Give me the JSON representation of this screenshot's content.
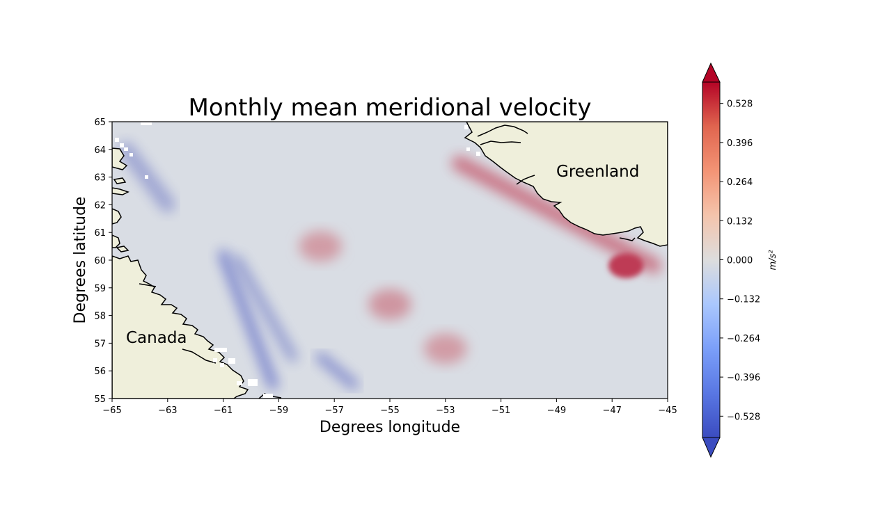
{
  "figure": {
    "title": "Monthly mean meridional velocity",
    "xlabel": "Degrees longitude",
    "ylabel": "Degrees latitude"
  },
  "chart_data": {
    "type": "heatmap",
    "title": "Monthly mean meridional velocity",
    "xlabel": "Degrees longitude",
    "ylabel": "Degrees latitude",
    "xlim": [
      -65,
      -45
    ],
    "ylim": [
      55,
      65
    ],
    "x_ticks": [
      -65,
      -63,
      -61,
      -59,
      -57,
      -55,
      -53,
      -51,
      -49,
      -47,
      -45
    ],
    "x_tick_labels": [
      "−65",
      "−63",
      "−61",
      "−59",
      "−57",
      "−55",
      "−53",
      "−51",
      "−49",
      "−47",
      "−45"
    ],
    "y_ticks": [
      55,
      56,
      57,
      58,
      59,
      60,
      61,
      62,
      63,
      64,
      65
    ],
    "y_tick_labels": [
      "55",
      "56",
      "57",
      "58",
      "59",
      "60",
      "61",
      "62",
      "63",
      "64",
      "65"
    ],
    "colormap": "coolwarm",
    "color_low": "#3b4cc0",
    "color_mid": "#dddddd",
    "color_high": "#b40426",
    "land_color": "#efefdb",
    "colorbar": {
      "label": "m/s²",
      "range": [
        -0.6,
        0.6
      ],
      "extend": "both",
      "ticks": [
        -0.528,
        -0.396,
        -0.264,
        -0.132,
        0.0,
        0.132,
        0.264,
        0.396,
        0.528
      ],
      "tick_labels": [
        "−0.528",
        "−0.396",
        "−0.264",
        "−0.132",
        "0.000",
        "0.132",
        "0.264",
        "0.396",
        "0.528"
      ]
    },
    "region_labels": [
      {
        "text": "Greenland",
        "lon": -49,
        "lat": 63.2
      },
      {
        "text": "Canada",
        "lon": -64.5,
        "lat": 57.2
      }
    ],
    "features": [
      {
        "type": "negative streak",
        "from": [
          -61,
          60.2
        ],
        "to": [
          -59.2,
          55.5
        ],
        "value": -0.4
      },
      {
        "type": "negative streak",
        "from": [
          -60.5,
          60
        ],
        "to": [
          -58.5,
          56.5
        ],
        "value": -0.3
      },
      {
        "type": "negative streak",
        "from": [
          -57.5,
          56.5
        ],
        "to": [
          -56.3,
          55.5
        ],
        "value": -0.35
      },
      {
        "type": "negative coastal",
        "from": [
          -64.5,
          64
        ],
        "to": [
          -63,
          62
        ],
        "value": -0.25
      },
      {
        "type": "positive coastal",
        "from": [
          -52.5,
          63.5
        ],
        "to": [
          -45.5,
          59.8
        ],
        "value": 0.3
      },
      {
        "type": "positive maximum",
        "lon": -46.5,
        "lat": 59.8,
        "value": 0.45
      },
      {
        "type": "positive patch",
        "lon": -55,
        "lat": 58.4,
        "value": 0.2
      },
      {
        "type": "positive patch",
        "lon": -53,
        "lat": 56.8,
        "value": 0.18
      },
      {
        "type": "positive patch",
        "lon": -57.5,
        "lat": 60.5,
        "value": 0.18
      }
    ]
  }
}
